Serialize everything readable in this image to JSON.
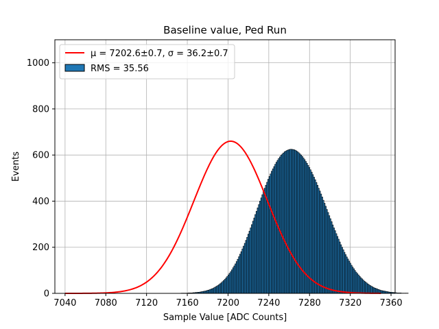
{
  "chart_data": {
    "type": "bar",
    "title": "Baseline value, Ped Run",
    "xlabel": "Sample Value [ADC Counts]",
    "ylabel": "Events",
    "xlim": [
      7030,
      7364
    ],
    "ylim": [
      0,
      1100
    ],
    "xticks": [
      7040,
      7080,
      7120,
      7160,
      7200,
      7240,
      7280,
      7320,
      7360
    ],
    "yticks": [
      0,
      200,
      400,
      600,
      800,
      1000
    ],
    "grid": true,
    "legend_position": "top-left",
    "histogram": {
      "name": "RMS = 35.56",
      "color": "#1f77b4",
      "edge_color": "#000000",
      "bin_start": 7040,
      "bin_width": 1.15,
      "counts": [
        0,
        0,
        0,
        0,
        0,
        0,
        0,
        0,
        0,
        0,
        0,
        0,
        0,
        0,
        0,
        0,
        0,
        0,
        0,
        0,
        0,
        0,
        0,
        0,
        0,
        0,
        0,
        0,
        0,
        0,
        0,
        0,
        0,
        0,
        0,
        0,
        0,
        0,
        0,
        0,
        0,
        0,
        0,
        0,
        0,
        0,
        0,
        0,
        0,
        0,
        0,
        0,
        0,
        0,
        0,
        0,
        0,
        0,
        0,
        0,
        0,
        0,
        0,
        0,
        0,
        0,
        0,
        0,
        0,
        0,
        0,
        0,
        0,
        0,
        0,
        0,
        0,
        0,
        0,
        0,
        0,
        0,
        0,
        0,
        0,
        0,
        0,
        0,
        0,
        0,
        0,
        0,
        0,
        0,
        0,
        0,
        0,
        0,
        0,
        1,
        1,
        1,
        1,
        1,
        1,
        2,
        2,
        2,
        2,
        3,
        3,
        4,
        4,
        5,
        5,
        6,
        7,
        8,
        9,
        10,
        11,
        13,
        14,
        16,
        18,
        20,
        22,
        25,
        28,
        31,
        34,
        38,
        42,
        46,
        51,
        56,
        61,
        67,
        73,
        80,
        87,
        94,
        102,
        111,
        119,
        128,
        138,
        148,
        159,
        170,
        181,
        193,
        205,
        217,
        230,
        243,
        257,
        270,
        284,
        298,
        313,
        327,
        342,
        356,
        371,
        385,
        400,
        414,
        428,
        442,
        456,
        469,
        482,
        495,
        507,
        518,
        530,
        540,
        550,
        560,
        569,
        577,
        585,
        592,
        599,
        604,
        609,
        614,
        617,
        620,
        622,
        624,
        625,
        625,
        624,
        623,
        621,
        618,
        614,
        610,
        605,
        600,
        594,
        587,
        580,
        572,
        564,
        555,
        546,
        536,
        526,
        515,
        504,
        493,
        481,
        469,
        456,
        444,
        431,
        418,
        404,
        391,
        378,
        364,
        351,
        337,
        324,
        311,
        297,
        284,
        272,
        259,
        247,
        235,
        223,
        211,
        200,
        189,
        178,
        168,
        158,
        149,
        140,
        131,
        122,
        114,
        107,
        99,
        92,
        86,
        80,
        74,
        68,
        63,
        58,
        53,
        49,
        45,
        41,
        37,
        34,
        31,
        28,
        25,
        23,
        21,
        19,
        17,
        15,
        13,
        12,
        11,
        10,
        9,
        8,
        7,
        6,
        5,
        5,
        4,
        4,
        3,
        3,
        2,
        2,
        2,
        2,
        1,
        1,
        1,
        1,
        1,
        1,
        0,
        0,
        0,
        0,
        0,
        0,
        0,
        0
      ]
    },
    "fit_curve": {
      "name": "μ = 7202.6±0.7, σ = 36.2±0.7",
      "color": "#ff0000",
      "mu": 7202.6,
      "sigma": 36.2,
      "amplitude": 660,
      "x_range": [
        7040,
        7350
      ]
    }
  }
}
